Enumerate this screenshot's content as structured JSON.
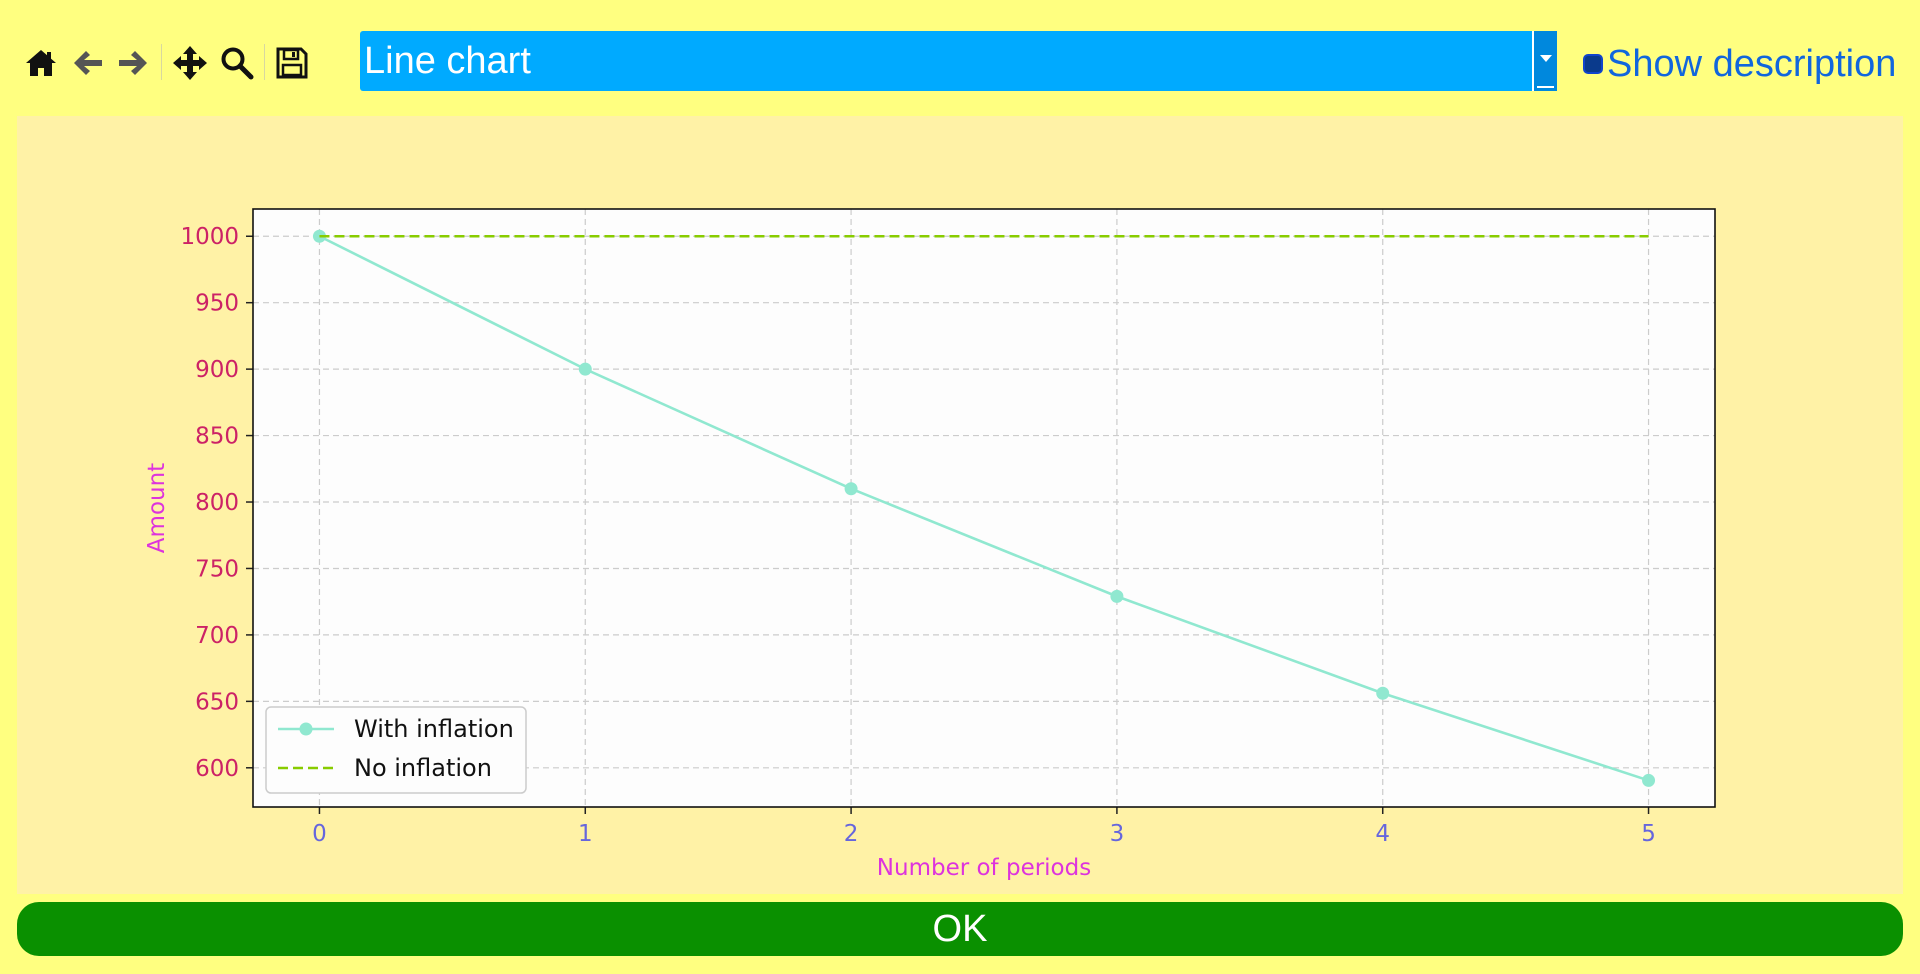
{
  "toolbar": {
    "tools": [
      {
        "name": "home-icon",
        "label": "home"
      },
      {
        "name": "back-arrow-icon",
        "label": "back"
      },
      {
        "name": "forward-arrow-icon",
        "label": "forward"
      },
      {
        "name": "pan-move-icon",
        "label": "pan"
      },
      {
        "name": "zoom-magnifier-icon",
        "label": "zoom"
      },
      {
        "name": "save-floppy-icon",
        "label": "save"
      }
    ]
  },
  "chart_select": {
    "value": "Line chart"
  },
  "description_toggle": {
    "label": "Show description",
    "checked": false
  },
  "ok_button": {
    "label": "OK"
  },
  "colors": {
    "background": "#ffff80",
    "panel": "#fff2a6",
    "select": "#00aaff",
    "ok": "#0a9000",
    "with_inflation": "#90e8d0",
    "no_inflation": "#88cc00",
    "ytick": "#cc2266",
    "xtick": "#6666dd",
    "axis_label": "#dd33dd"
  },
  "chart_data": {
    "type": "line",
    "xlabel": "Number of periods",
    "ylabel": "Amount",
    "x": [
      0,
      1,
      2,
      3,
      4,
      5
    ],
    "xticks": [
      0,
      1,
      2,
      3,
      4,
      5
    ],
    "yticks": [
      600,
      650,
      700,
      750,
      800,
      850,
      900,
      950,
      1000
    ],
    "xlim": [
      -0.25,
      5.25
    ],
    "ylim": [
      570.5,
      1020.5
    ],
    "grid": true,
    "legend_position": "lower-left",
    "series": [
      {
        "name": "With inflation",
        "values": [
          1000,
          900,
          810,
          729,
          656.1,
          590.49
        ],
        "style": "solid",
        "marker": "circle",
        "color": "#90e8d0"
      },
      {
        "name": "No inflation",
        "values": [
          1000,
          1000,
          1000,
          1000,
          1000,
          1000
        ],
        "style": "dashed",
        "marker": "none",
        "color": "#88cc00"
      }
    ]
  }
}
